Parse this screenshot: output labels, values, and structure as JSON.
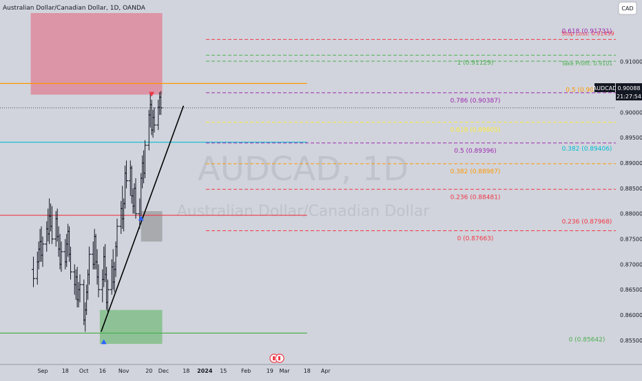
{
  "header": {
    "symbol_title": "Australian Dollar/Canadian Dollar, 1D, OANDA",
    "currency_button": "CAD"
  },
  "watermark": {
    "ticker": "AUDCAD, 1D",
    "name": "Australian Dollar/Canadian Dollar"
  },
  "price_badge": {
    "symbol": "AUDCAD",
    "price": "0.90088",
    "countdown": "21:27:54"
  },
  "colors": {
    "background": "#d1d4dc",
    "bull": "#000000",
    "supply_zone": "#e8566f",
    "demand_zone": "#4caf50",
    "mid_zone": "#808080",
    "fib_orange": "#ff9800",
    "fib_red": "#f23645",
    "fib_purple": "#9c27b0",
    "fib_yellow": "#ffeb3b",
    "fib_cyan": "#00bcd4",
    "fib_green": "#4caf50"
  },
  "chart_data": {
    "type": "candlestick",
    "title": "Australian Dollar/Canadian Dollar, 1D, OANDA",
    "y_axis": {
      "range": [
        0.8543,
        0.9196
      ],
      "ticks": [
        "0.91000",
        "0.90500",
        "0.90000",
        "0.89500",
        "0.89000",
        "0.88500",
        "0.88000",
        "0.87500",
        "0.87000",
        "0.86500",
        "0.86000",
        "0.85500"
      ],
      "tick_values": [
        0.91,
        0.905,
        0.9,
        0.895,
        0.89,
        0.885,
        0.88,
        0.875,
        0.87,
        0.865,
        0.86,
        0.855
      ]
    },
    "x_axis": {
      "ticks": [
        "Sep",
        "18",
        "Oct",
        "16",
        "Nov",
        "20",
        "Dec",
        "18",
        "2024",
        "15",
        "Feb",
        "19",
        "Mar",
        "18",
        "Apr"
      ],
      "tick_dates": [
        "2023-09-01",
        "2023-09-18",
        "2023-10-02",
        "2023-10-16",
        "2023-11-01",
        "2023-11-20",
        "2023-12-01",
        "2023-12-18",
        "2024-01-01",
        "2024-01-15",
        "2024-02-01",
        "2024-02-19",
        "2024-03-01",
        "2024-03-18",
        "2024-04-01"
      ]
    },
    "candles": [
      {
        "date": "2023-08-25",
        "o": 0.869,
        "h": 0.8715,
        "l": 0.8655,
        "c": 0.8672
      },
      {
        "date": "2023-08-28",
        "o": 0.8672,
        "h": 0.8725,
        "l": 0.866,
        "c": 0.8705
      },
      {
        "date": "2023-08-29",
        "o": 0.8705,
        "h": 0.8745,
        "l": 0.869,
        "c": 0.873
      },
      {
        "date": "2023-08-30",
        "o": 0.873,
        "h": 0.877,
        "l": 0.8705,
        "c": 0.8745
      },
      {
        "date": "2023-08-31",
        "o": 0.8745,
        "h": 0.8775,
        "l": 0.8705,
        "c": 0.8718
      },
      {
        "date": "2023-09-01",
        "o": 0.8718,
        "h": 0.8755,
        "l": 0.8695,
        "c": 0.874
      },
      {
        "date": "2023-09-04",
        "o": 0.874,
        "h": 0.8785,
        "l": 0.8725,
        "c": 0.877
      },
      {
        "date": "2023-09-05",
        "o": 0.877,
        "h": 0.881,
        "l": 0.8745,
        "c": 0.876
      },
      {
        "date": "2023-09-06",
        "o": 0.876,
        "h": 0.883,
        "l": 0.874,
        "c": 0.8795
      },
      {
        "date": "2023-09-07",
        "o": 0.8795,
        "h": 0.882,
        "l": 0.8765,
        "c": 0.8775
      },
      {
        "date": "2023-09-08",
        "o": 0.8775,
        "h": 0.8815,
        "l": 0.874,
        "c": 0.875
      },
      {
        "date": "2023-09-11",
        "o": 0.875,
        "h": 0.8805,
        "l": 0.8735,
        "c": 0.879
      },
      {
        "date": "2023-09-12",
        "o": 0.879,
        "h": 0.881,
        "l": 0.8745,
        "c": 0.8755
      },
      {
        "date": "2023-09-13",
        "o": 0.8755,
        "h": 0.8775,
        "l": 0.8715,
        "c": 0.873
      },
      {
        "date": "2023-09-14",
        "o": 0.873,
        "h": 0.876,
        "l": 0.869,
        "c": 0.87
      },
      {
        "date": "2023-09-15",
        "o": 0.87,
        "h": 0.8745,
        "l": 0.8685,
        "c": 0.8725
      },
      {
        "date": "2023-09-18",
        "o": 0.8725,
        "h": 0.875,
        "l": 0.869,
        "c": 0.8705
      },
      {
        "date": "2023-09-19",
        "o": 0.8705,
        "h": 0.876,
        "l": 0.8695,
        "c": 0.874
      },
      {
        "date": "2023-09-20",
        "o": 0.874,
        "h": 0.878,
        "l": 0.8715,
        "c": 0.8765
      },
      {
        "date": "2023-09-21",
        "o": 0.8765,
        "h": 0.8775,
        "l": 0.8705,
        "c": 0.872
      },
      {
        "date": "2023-09-22",
        "o": 0.872,
        "h": 0.8735,
        "l": 0.867,
        "c": 0.8685
      },
      {
        "date": "2023-09-25",
        "o": 0.8685,
        "h": 0.87,
        "l": 0.864,
        "c": 0.866
      },
      {
        "date": "2023-09-26",
        "o": 0.866,
        "h": 0.869,
        "l": 0.863,
        "c": 0.8675
      },
      {
        "date": "2023-09-27",
        "o": 0.8675,
        "h": 0.8695,
        "l": 0.8615,
        "c": 0.863
      },
      {
        "date": "2023-09-28",
        "o": 0.863,
        "h": 0.8665,
        "l": 0.8615,
        "c": 0.865
      },
      {
        "date": "2023-09-29",
        "o": 0.865,
        "h": 0.868,
        "l": 0.8625,
        "c": 0.866
      },
      {
        "date": "2023-10-02",
        "o": 0.866,
        "h": 0.867,
        "l": 0.858,
        "c": 0.859
      },
      {
        "date": "2023-10-03",
        "o": 0.859,
        "h": 0.8625,
        "l": 0.8567,
        "c": 0.861
      },
      {
        "date": "2023-10-04",
        "o": 0.861,
        "h": 0.866,
        "l": 0.86,
        "c": 0.8645
      },
      {
        "date": "2023-10-05",
        "o": 0.8645,
        "h": 0.869,
        "l": 0.863,
        "c": 0.868
      },
      {
        "date": "2023-10-06",
        "o": 0.868,
        "h": 0.8735,
        "l": 0.866,
        "c": 0.872
      },
      {
        "date": "2023-10-09",
        "o": 0.872,
        "h": 0.8745,
        "l": 0.869,
        "c": 0.87
      },
      {
        "date": "2023-10-10",
        "o": 0.87,
        "h": 0.877,
        "l": 0.869,
        "c": 0.8755
      },
      {
        "date": "2023-10-11",
        "o": 0.8755,
        "h": 0.876,
        "l": 0.869,
        "c": 0.8705
      },
      {
        "date": "2023-10-12",
        "o": 0.8705,
        "h": 0.873,
        "l": 0.866,
        "c": 0.8675
      },
      {
        "date": "2023-10-13",
        "o": 0.8675,
        "h": 0.87,
        "l": 0.8635,
        "c": 0.865
      },
      {
        "date": "2023-10-16",
        "o": 0.865,
        "h": 0.869,
        "l": 0.8625,
        "c": 0.867
      },
      {
        "date": "2023-10-17",
        "o": 0.867,
        "h": 0.8735,
        "l": 0.8655,
        "c": 0.8715
      },
      {
        "date": "2023-10-18",
        "o": 0.8715,
        "h": 0.874,
        "l": 0.8665,
        "c": 0.868
      },
      {
        "date": "2023-10-19",
        "o": 0.868,
        "h": 0.8695,
        "l": 0.861,
        "c": 0.8625
      },
      {
        "date": "2023-10-20",
        "o": 0.8625,
        "h": 0.867,
        "l": 0.86,
        "c": 0.865
      },
      {
        "date": "2023-10-23",
        "o": 0.865,
        "h": 0.871,
        "l": 0.864,
        "c": 0.8695
      },
      {
        "date": "2023-10-24",
        "o": 0.8695,
        "h": 0.873,
        "l": 0.865,
        "c": 0.8665
      },
      {
        "date": "2023-10-25",
        "o": 0.8665,
        "h": 0.8705,
        "l": 0.8645,
        "c": 0.869
      },
      {
        "date": "2023-10-26",
        "o": 0.869,
        "h": 0.8745,
        "l": 0.8675,
        "c": 0.8735
      },
      {
        "date": "2023-10-27",
        "o": 0.8735,
        "h": 0.879,
        "l": 0.8715,
        "c": 0.8775
      },
      {
        "date": "2023-10-30",
        "o": 0.8775,
        "h": 0.8825,
        "l": 0.876,
        "c": 0.881
      },
      {
        "date": "2023-10-31",
        "o": 0.881,
        "h": 0.8855,
        "l": 0.877,
        "c": 0.879
      },
      {
        "date": "2023-11-01",
        "o": 0.879,
        "h": 0.883,
        "l": 0.8765,
        "c": 0.882
      },
      {
        "date": "2023-11-02",
        "o": 0.882,
        "h": 0.8895,
        "l": 0.881,
        "c": 0.888
      },
      {
        "date": "2023-11-03",
        "o": 0.888,
        "h": 0.8905,
        "l": 0.885,
        "c": 0.8865
      },
      {
        "date": "2023-11-06",
        "o": 0.8865,
        "h": 0.8905,
        "l": 0.8835,
        "c": 0.889
      },
      {
        "date": "2023-11-07",
        "o": 0.889,
        "h": 0.8895,
        "l": 0.882,
        "c": 0.8835
      },
      {
        "date": "2023-11-08",
        "o": 0.8835,
        "h": 0.885,
        "l": 0.88,
        "c": 0.8815
      },
      {
        "date": "2023-11-09",
        "o": 0.8815,
        "h": 0.886,
        "l": 0.88,
        "c": 0.885
      },
      {
        "date": "2023-11-10",
        "o": 0.885,
        "h": 0.887,
        "l": 0.879,
        "c": 0.88
      },
      {
        "date": "2023-11-13",
        "o": 0.88,
        "h": 0.883,
        "l": 0.877,
        "c": 0.879
      },
      {
        "date": "2023-11-14",
        "o": 0.879,
        "h": 0.888,
        "l": 0.878,
        "c": 0.887
      },
      {
        "date": "2023-11-15",
        "o": 0.887,
        "h": 0.8915,
        "l": 0.885,
        "c": 0.89
      },
      {
        "date": "2023-11-16",
        "o": 0.89,
        "h": 0.8925,
        "l": 0.886,
        "c": 0.888
      },
      {
        "date": "2023-11-17",
        "o": 0.888,
        "h": 0.8945,
        "l": 0.887,
        "c": 0.8935
      },
      {
        "date": "2023-11-20",
        "o": 0.8935,
        "h": 0.9005,
        "l": 0.8925,
        "c": 0.8995
      },
      {
        "date": "2023-11-21",
        "o": 0.8995,
        "h": 0.904,
        "l": 0.897,
        "c": 0.9015
      },
      {
        "date": "2023-11-22",
        "o": 0.9015,
        "h": 0.9025,
        "l": 0.8955,
        "c": 0.8965
      },
      {
        "date": "2023-11-23",
        "o": 0.8965,
        "h": 0.9005,
        "l": 0.895,
        "c": 0.899
      },
      {
        "date": "2023-11-24",
        "o": 0.899,
        "h": 0.901,
        "l": 0.896,
        "c": 0.8975
      },
      {
        "date": "2023-11-27",
        "o": 0.8975,
        "h": 0.9025,
        "l": 0.8965,
        "c": 0.901
      },
      {
        "date": "2023-11-28",
        "o": 0.901,
        "h": 0.904,
        "l": 0.8995,
        "c": 0.903
      },
      {
        "date": "2023-11-29",
        "o": 0.903,
        "h": 0.9042,
        "l": 0.8995,
        "c": 0.9009
      }
    ],
    "zones": [
      {
        "name": "supply-zone",
        "color": "#e8566f",
        "from": "2023-08-23",
        "to": "2023-11-30",
        "top": 0.9196,
        "bottom": 0.9035
      },
      {
        "name": "consolidation-zone",
        "color": "#808080",
        "from": "2023-11-14",
        "to": "2023-11-30",
        "top": 0.8805,
        "bottom": 0.8745
      },
      {
        "name": "demand-zone",
        "color": "#4caf50",
        "from": "2023-10-14",
        "to": "2023-11-30",
        "top": 0.861,
        "bottom": 0.8543
      }
    ],
    "horizontal_lines": [
      {
        "name": "supply-line",
        "value": 0.9057,
        "color": "#ff9800",
        "from": "2023-08-23",
        "to": "2024-03-18"
      },
      {
        "name": "resistance-line",
        "value": 0.87968,
        "color": "#f23645",
        "from": "2023-08-23",
        "to": "2024-03-18"
      },
      {
        "name": "support-line",
        "value": 0.85642,
        "color": "#4caf50",
        "from": "2023-08-23",
        "to": "2024-03-18"
      },
      {
        "name": "cyan-line",
        "value": 0.8941,
        "color": "#00bcd4",
        "from": "2023-08-23",
        "to": "2024-03-18"
      }
    ],
    "trendline": {
      "from_date": "2023-10-15",
      "from_value": 0.8567,
      "to_date": "2023-12-16",
      "to_value": 0.9013,
      "color": "#000000"
    },
    "fib_left": [
      {
        "label": "0.618 (0.91731)",
        "value": 0.91731,
        "color": "#9c27b0"
      },
      {
        "label": "0.5 (0.90569)",
        "value": 0.90569,
        "color": "#ff9800"
      },
      {
        "label": "0.382 (0.89406)",
        "value": 0.89406,
        "color": "#00bcd4"
      },
      {
        "label": "0.236 (0.87968)",
        "value": 0.87968,
        "color": "#f23645"
      },
      {
        "label": "0 (0.85642)",
        "value": 0.85642,
        "color": "#4caf50"
      }
    ],
    "fib_right": [
      {
        "label": "1 (0.91129)",
        "value": 0.91129,
        "color": "#4caf50"
      },
      {
        "label": "0.786 (0.90387)",
        "value": 0.90387,
        "color": "#9c27b0"
      },
      {
        "label": "0.618 (0.89805)",
        "value": 0.89805,
        "color": "#ffeb3b"
      },
      {
        "label": "0.5 (0.89396)",
        "value": 0.89396,
        "color": "#9c27b0"
      },
      {
        "label": "0.382 (0.88987)",
        "value": 0.88987,
        "color": "#ff9800"
      },
      {
        "label": "0.236 (0.88481)",
        "value": 0.88481,
        "color": "#f23645"
      },
      {
        "label": "0 (0.87663)",
        "value": 0.87663,
        "color": "#f23645"
      }
    ],
    "trade_levels": [
      {
        "label": "Stop Loss: 0.91439",
        "value": 0.91439,
        "color": "#f23645"
      },
      {
        "label": "Take Profit: 0.9101",
        "value": 0.9101,
        "color": "#4caf50"
      }
    ],
    "last_price": 0.90088,
    "markers": [
      {
        "name": "down-triangle-marker",
        "date": "2023-11-22",
        "value": 0.9035,
        "direction": "down",
        "color": "#f23645"
      },
      {
        "name": "up-triangle-marker",
        "date": "2023-11-14",
        "value": 0.8792,
        "direction": "up",
        "color": "#2962ff"
      },
      {
        "name": "up-triangle-marker-bottom",
        "date": "2023-10-17",
        "value": 0.8548,
        "direction": "up",
        "color": "#2962ff"
      }
    ]
  }
}
